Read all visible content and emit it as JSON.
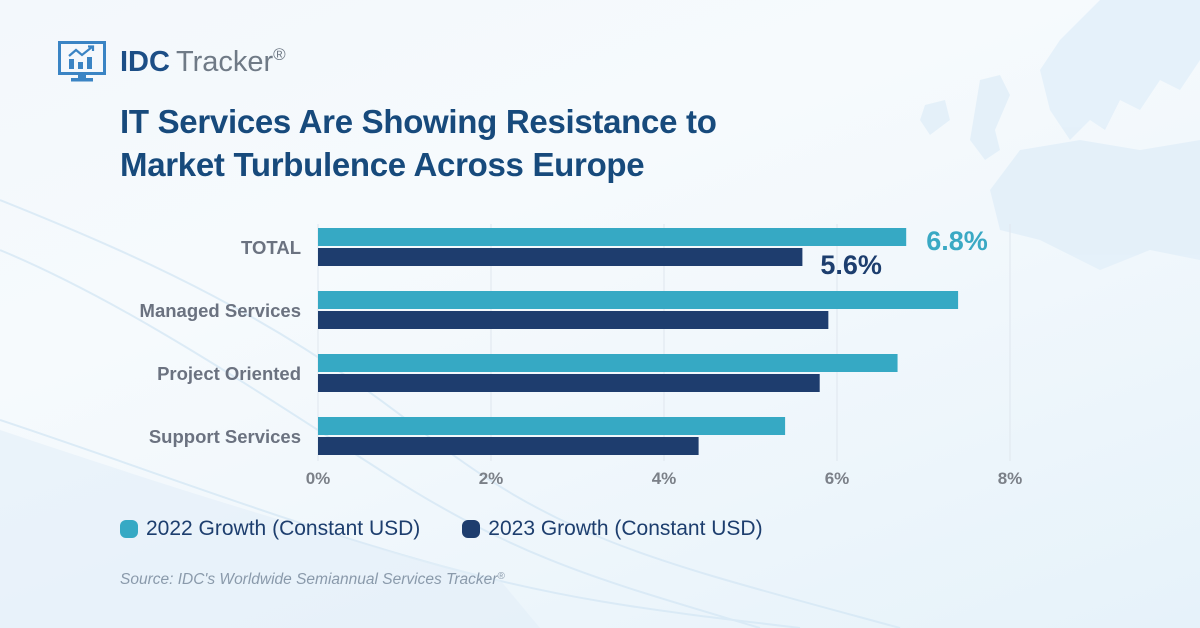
{
  "logo": {
    "brand": "IDC",
    "product": "Tracker",
    "registered": "®",
    "icon": "monitor-chart-icon"
  },
  "title_lines": [
    "IT Services Are Showing Resistance to",
    "Market Turbulence Across Europe"
  ],
  "colors": {
    "series_2022": "#36a9c4",
    "series_2023": "#1e3d6e",
    "title": "#174a7c",
    "gridline": "#dfe6ee"
  },
  "chart_data": {
    "type": "bar",
    "orientation": "horizontal",
    "title": "IT Services Are Showing Resistance to Market Turbulence Across Europe",
    "categories": [
      "TOTAL",
      "Managed Services",
      "Project Oriented",
      "Support Services"
    ],
    "series": [
      {
        "name": "2022 Growth (Constant USD)",
        "values": [
          6.8,
          7.4,
          6.7,
          5.4
        ]
      },
      {
        "name": "2023 Growth (Constant USD)",
        "values": [
          5.6,
          5.9,
          5.8,
          4.4
        ]
      }
    ],
    "data_labels": [
      {
        "category": "TOTAL",
        "series": 0,
        "text": "6.8%"
      },
      {
        "category": "TOTAL",
        "series": 1,
        "text": "5.6%"
      }
    ],
    "xlabel": "",
    "ylabel": "",
    "xlim": [
      0,
      8
    ],
    "xticks": [
      0,
      2,
      4,
      6,
      8
    ],
    "xtick_labels": [
      "0%",
      "2%",
      "4%",
      "6%",
      "8%"
    ],
    "grid": "vertical",
    "legend_position": "bottom-left"
  },
  "legend": [
    {
      "label": "2022 Growth (Constant USD)"
    },
    {
      "label": "2023 Growth (Constant USD)"
    }
  ],
  "source": {
    "text": "Source: IDC's Worldwide Semiannual Services Tracker",
    "registered": "®"
  }
}
